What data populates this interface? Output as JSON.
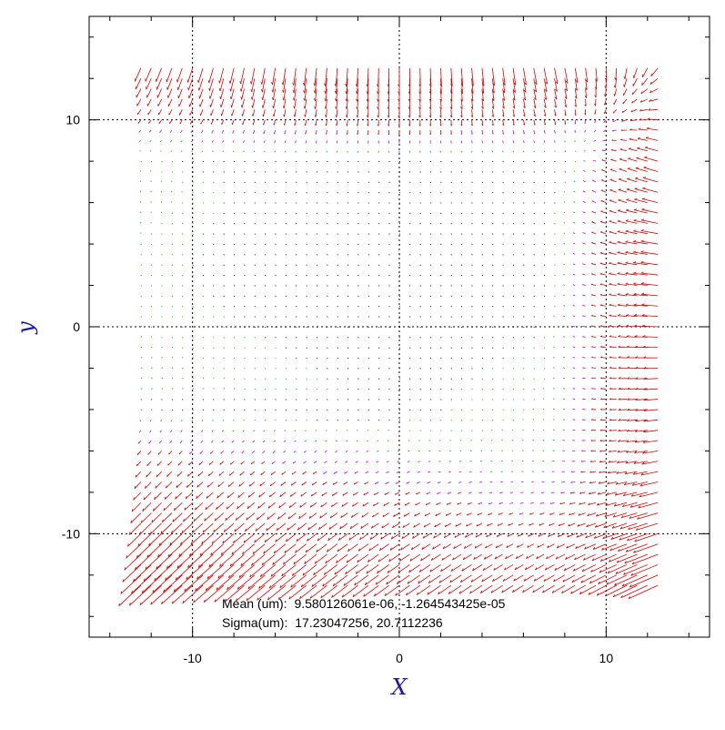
{
  "chart_data": {
    "type": "quiver",
    "title": "",
    "xlabel": "X",
    "ylabel": "y",
    "xlim": [
      -15,
      15
    ],
    "ylim": [
      -15,
      15
    ],
    "xticks": [
      -10,
      0,
      10
    ],
    "yticks": [
      -10,
      0,
      10
    ],
    "xtick_labels": [
      "-10",
      "0",
      "10"
    ],
    "ytick_labels": [
      "-10",
      "0",
      "10"
    ],
    "minor_tick_step": 2,
    "grid": true,
    "grid_lines_x": [
      -10,
      0,
      10
    ],
    "grid_lines_y": [
      -10,
      0,
      10
    ],
    "grid_style": "dotted",
    "field": {
      "x_range": [
        -12.5,
        12.8
      ],
      "y_range": [
        -12.5,
        12.5
      ],
      "spacing": 0.5,
      "description_colors": {
        "large": "red",
        "medium": "magenta",
        "small": "green",
        "tiny": "black"
      }
    },
    "annotations": [
      {
        "label": "Mean (um):",
        "value": "9.580126061e-06, -1.264543425e-05"
      },
      {
        "label": "Sigma(um):",
        "value": "17.23047256, 20.7112236"
      }
    ]
  },
  "colors": {
    "axis_label": "#1a1aa6",
    "large": "#dd0000",
    "medium": "#cc00cc",
    "small": "#00aa00",
    "tiny": "#000000",
    "frame": "#000000"
  }
}
